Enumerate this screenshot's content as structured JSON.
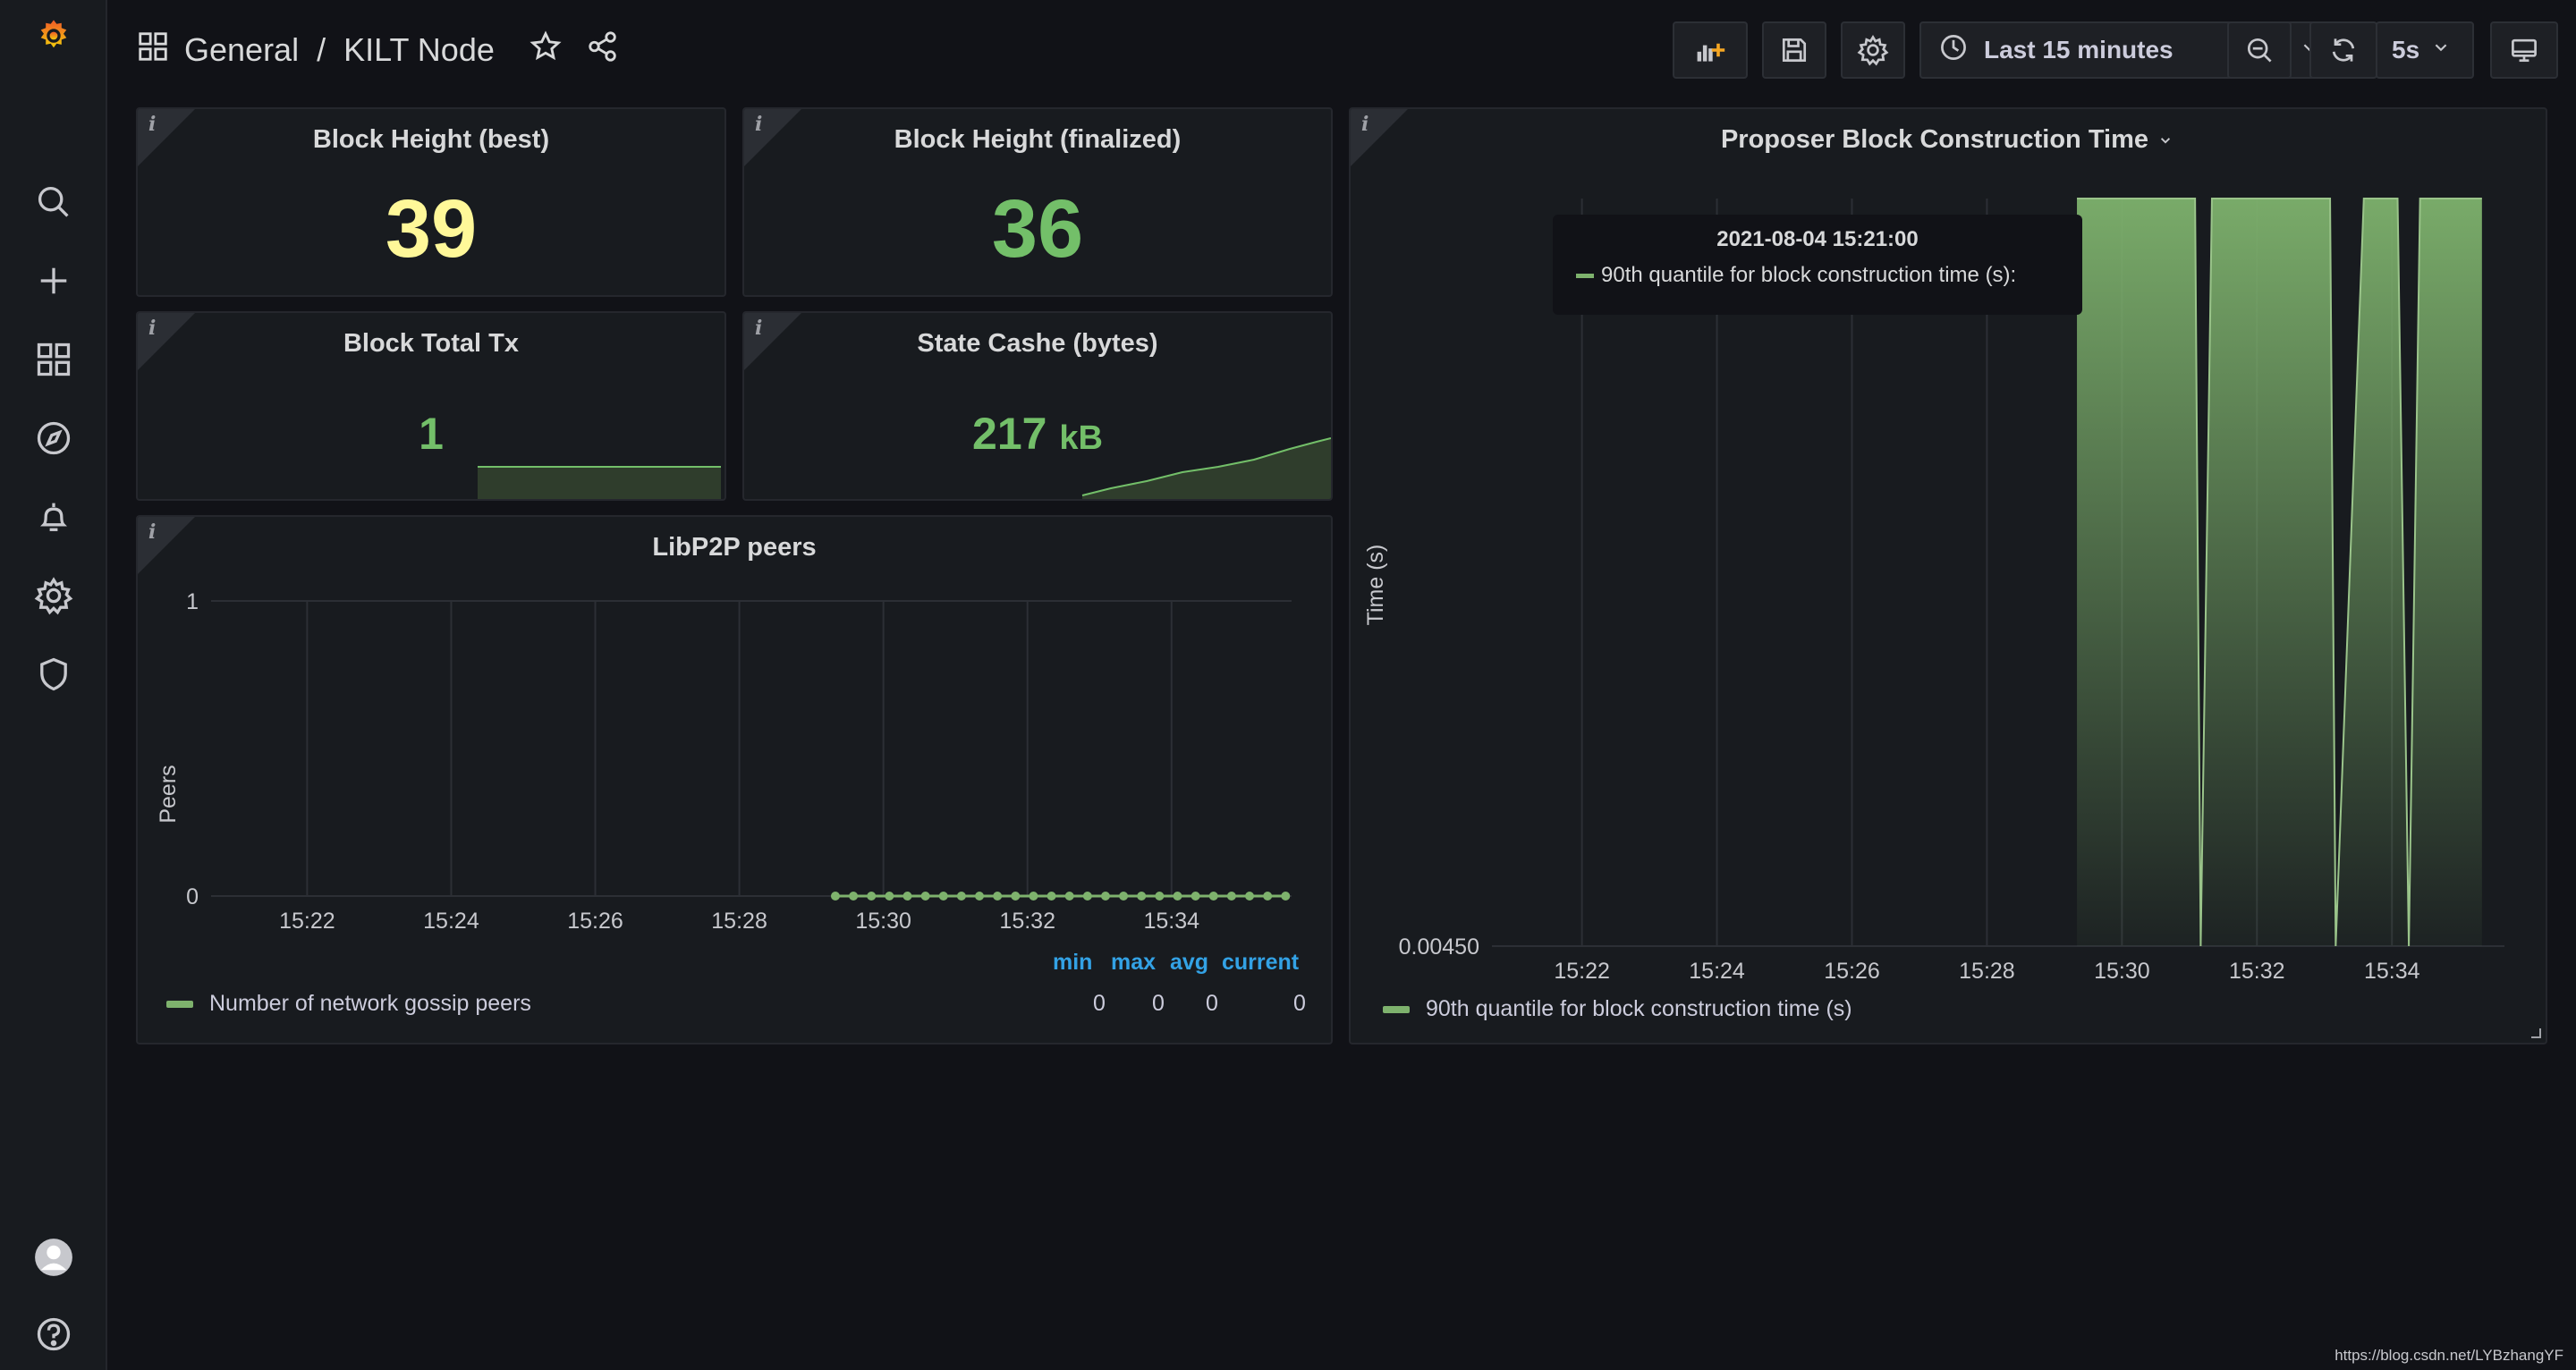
{
  "breadcrumb": {
    "folder": "General",
    "separator": "/",
    "dashboard": "KILT Node"
  },
  "icons": {
    "logo": "grafana-logo-icon",
    "search": "search-icon",
    "create": "plus-icon",
    "dashboards": "dashboards-grid-icon",
    "explore": "compass-icon",
    "alerting": "bell-icon",
    "configuration": "gear-icon",
    "admin": "shield-icon",
    "profile": "avatar-icon",
    "help": "help-icon"
  },
  "toolbar": {
    "time_range": "Last 15 minutes",
    "refresh_interval": "5s"
  },
  "colors": {
    "accent_yellow": "#f2cc0c",
    "value_green": "#73bf69",
    "series_green": "#7eb26d",
    "legend_head_blue": "#33a2e5"
  },
  "panels": {
    "block_height_best": {
      "title": "Block Height (best)",
      "value": "39"
    },
    "block_height_finalized": {
      "title": "Block Height (finalized)",
      "value": "36"
    },
    "block_total_tx": {
      "title": "Block Total Tx",
      "value": "1"
    },
    "state_cache": {
      "title": "State Cashe (bytes)",
      "value": "217",
      "unit": "kB"
    },
    "libp2p_peers": {
      "title": "LibP2P peers",
      "legend_headers": [
        "min",
        "max",
        "avg",
        "current"
      ],
      "legend_series": "Number of network gossip peers",
      "legend_values": [
        "0",
        "0",
        "0",
        "0"
      ]
    },
    "proposer": {
      "title": "Proposer Block Construction Time",
      "legend_series": "90th quantile for block construction time (s)",
      "tooltip_time": "2021-08-04 15:21:00",
      "tooltip_series": "90th quantile for block construction time (s):"
    }
  },
  "chart_data": [
    {
      "type": "line",
      "title": "LibP2P peers",
      "ylabel": "Peers",
      "x_ticks": [
        "15:22",
        "15:24",
        "15:26",
        "15:28",
        "15:30",
        "15:32",
        "15:34"
      ],
      "y_ticks": [
        "0",
        "1"
      ],
      "ylim": [
        0,
        1
      ],
      "series": [
        {
          "name": "Number of network gossip peers",
          "x": [
            "15:29:20",
            "15:29:35",
            "15:29:50",
            "15:30:05",
            "15:30:20",
            "15:30:35",
            "15:30:50",
            "15:31:05",
            "15:31:20",
            "15:31:35",
            "15:31:50",
            "15:32:05",
            "15:32:20",
            "15:32:35",
            "15:32:50",
            "15:33:05",
            "15:33:20",
            "15:33:35",
            "15:33:50",
            "15:34:05",
            "15:34:20",
            "15:34:35",
            "15:34:50",
            "15:35:05",
            "15:35:20",
            "15:35:35"
          ],
          "values": [
            0,
            0,
            0,
            0,
            0,
            0,
            0,
            0,
            0,
            0,
            0,
            0,
            0,
            0,
            0,
            0,
            0,
            0,
            0,
            0,
            0,
            0,
            0,
            0,
            0,
            0
          ]
        }
      ]
    },
    {
      "type": "area",
      "title": "Proposer Block Construction Time",
      "ylabel": "Time (s)",
      "x_ticks": [
        "15:22",
        "15:24",
        "15:26",
        "15:28",
        "15:30",
        "15:32",
        "15:34"
      ],
      "y_ticks": [
        "0.00450"
      ],
      "series": [
        {
          "name": "90th quantile for block construction time (s)",
          "x": [
            "15:29:20",
            "15:31:05",
            "15:31:10",
            "15:31:20",
            "15:33:05",
            "15:33:10",
            "15:33:35",
            "15:34:05",
            "15:34:15",
            "15:34:25",
            "15:35:20"
          ],
          "level": [
            1,
            1,
            0,
            1,
            1,
            0,
            1,
            1,
            0,
            1,
            1
          ]
        }
      ]
    }
  ],
  "watermark": "https://blog.csdn.net/LYBzhangYF"
}
